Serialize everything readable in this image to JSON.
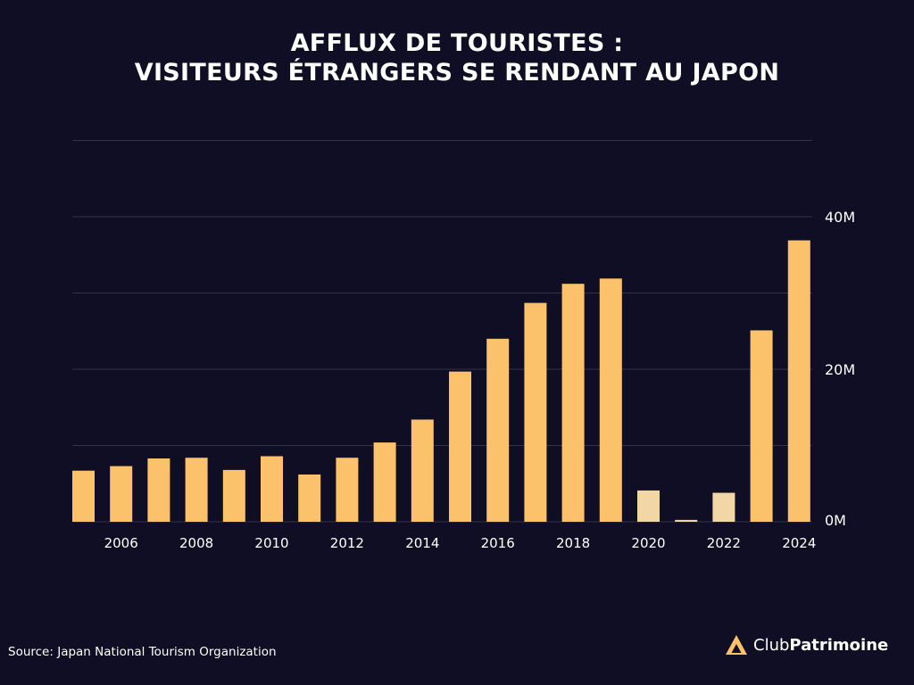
{
  "header": {
    "title_line1": "AFFLUX DE TOURISTES :",
    "title_line2": "VISITEURS ÉTRANGERS SE RENDANT AU JAPON"
  },
  "footer": {
    "source": "Source: Japan National Tourism Organization",
    "brand_light": "Club",
    "brand_bold": "Patrimoine",
    "brand_icon": "triangle-logo-icon"
  },
  "colors": {
    "background": "#0f0e24",
    "bar": "#fbc26b",
    "bar_muted": "#f3d6a6",
    "grid": "#34334d",
    "brand_logo": "#fbc26b"
  },
  "chart_data": {
    "type": "bar",
    "title": "AFFLUX DE TOURISTES : VISITEURS ÉTRANGERS SE RENDANT AU JAPON",
    "xlabel": "",
    "ylabel": "",
    "categories": [
      "2005",
      "2006",
      "2007",
      "2008",
      "2009",
      "2010",
      "2011",
      "2012",
      "2013",
      "2014",
      "2015",
      "2016",
      "2017",
      "2018",
      "2019",
      "2020",
      "2021",
      "2022",
      "2023",
      "2024"
    ],
    "values": [
      6.7,
      7.3,
      8.3,
      8.4,
      6.8,
      8.6,
      6.2,
      8.4,
      10.4,
      13.4,
      19.7,
      24.0,
      28.7,
      31.2,
      31.9,
      4.1,
      0.25,
      3.8,
      25.1,
      36.9
    ],
    "muted_categories": [
      "2020",
      "2021",
      "2022"
    ],
    "x_tick_labels": [
      "2006",
      "2008",
      "2010",
      "2012",
      "2014",
      "2016",
      "2018",
      "2020",
      "2022",
      "2024"
    ],
    "y_ticks": [
      0,
      20,
      40
    ],
    "y_tick_labels": [
      "0M",
      "20M",
      "40M"
    ],
    "ylim": [
      0,
      50
    ],
    "y_axis_side": "right",
    "grid": true
  }
}
